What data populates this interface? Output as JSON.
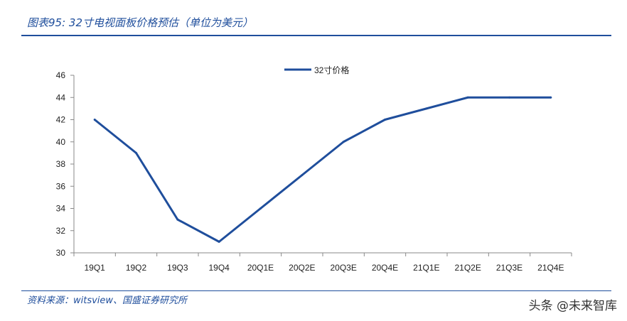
{
  "title": "图表95: 32寸电视面板价格预估（单位为美元）",
  "source": "资料来源：witsview、国盛证券研究所",
  "watermark": "头条 @未来智库",
  "chart_data": {
    "type": "line",
    "categories": [
      "19Q1",
      "19Q2",
      "19Q3",
      "19Q4",
      "20Q1E",
      "20Q2E",
      "20Q3E",
      "20Q4E",
      "21Q1E",
      "21Q2E",
      "21Q3E",
      "21Q4E"
    ],
    "series": [
      {
        "name": "32寸价格",
        "values": [
          42,
          39,
          33,
          31,
          34,
          37,
          40,
          42,
          43,
          44,
          44,
          44
        ],
        "color": "#1f4e9c"
      }
    ],
    "ylim": [
      30,
      46
    ],
    "yticks": [
      30,
      32,
      34,
      36,
      38,
      40,
      42,
      44,
      46
    ],
    "grid": false,
    "legend": "top-center"
  }
}
